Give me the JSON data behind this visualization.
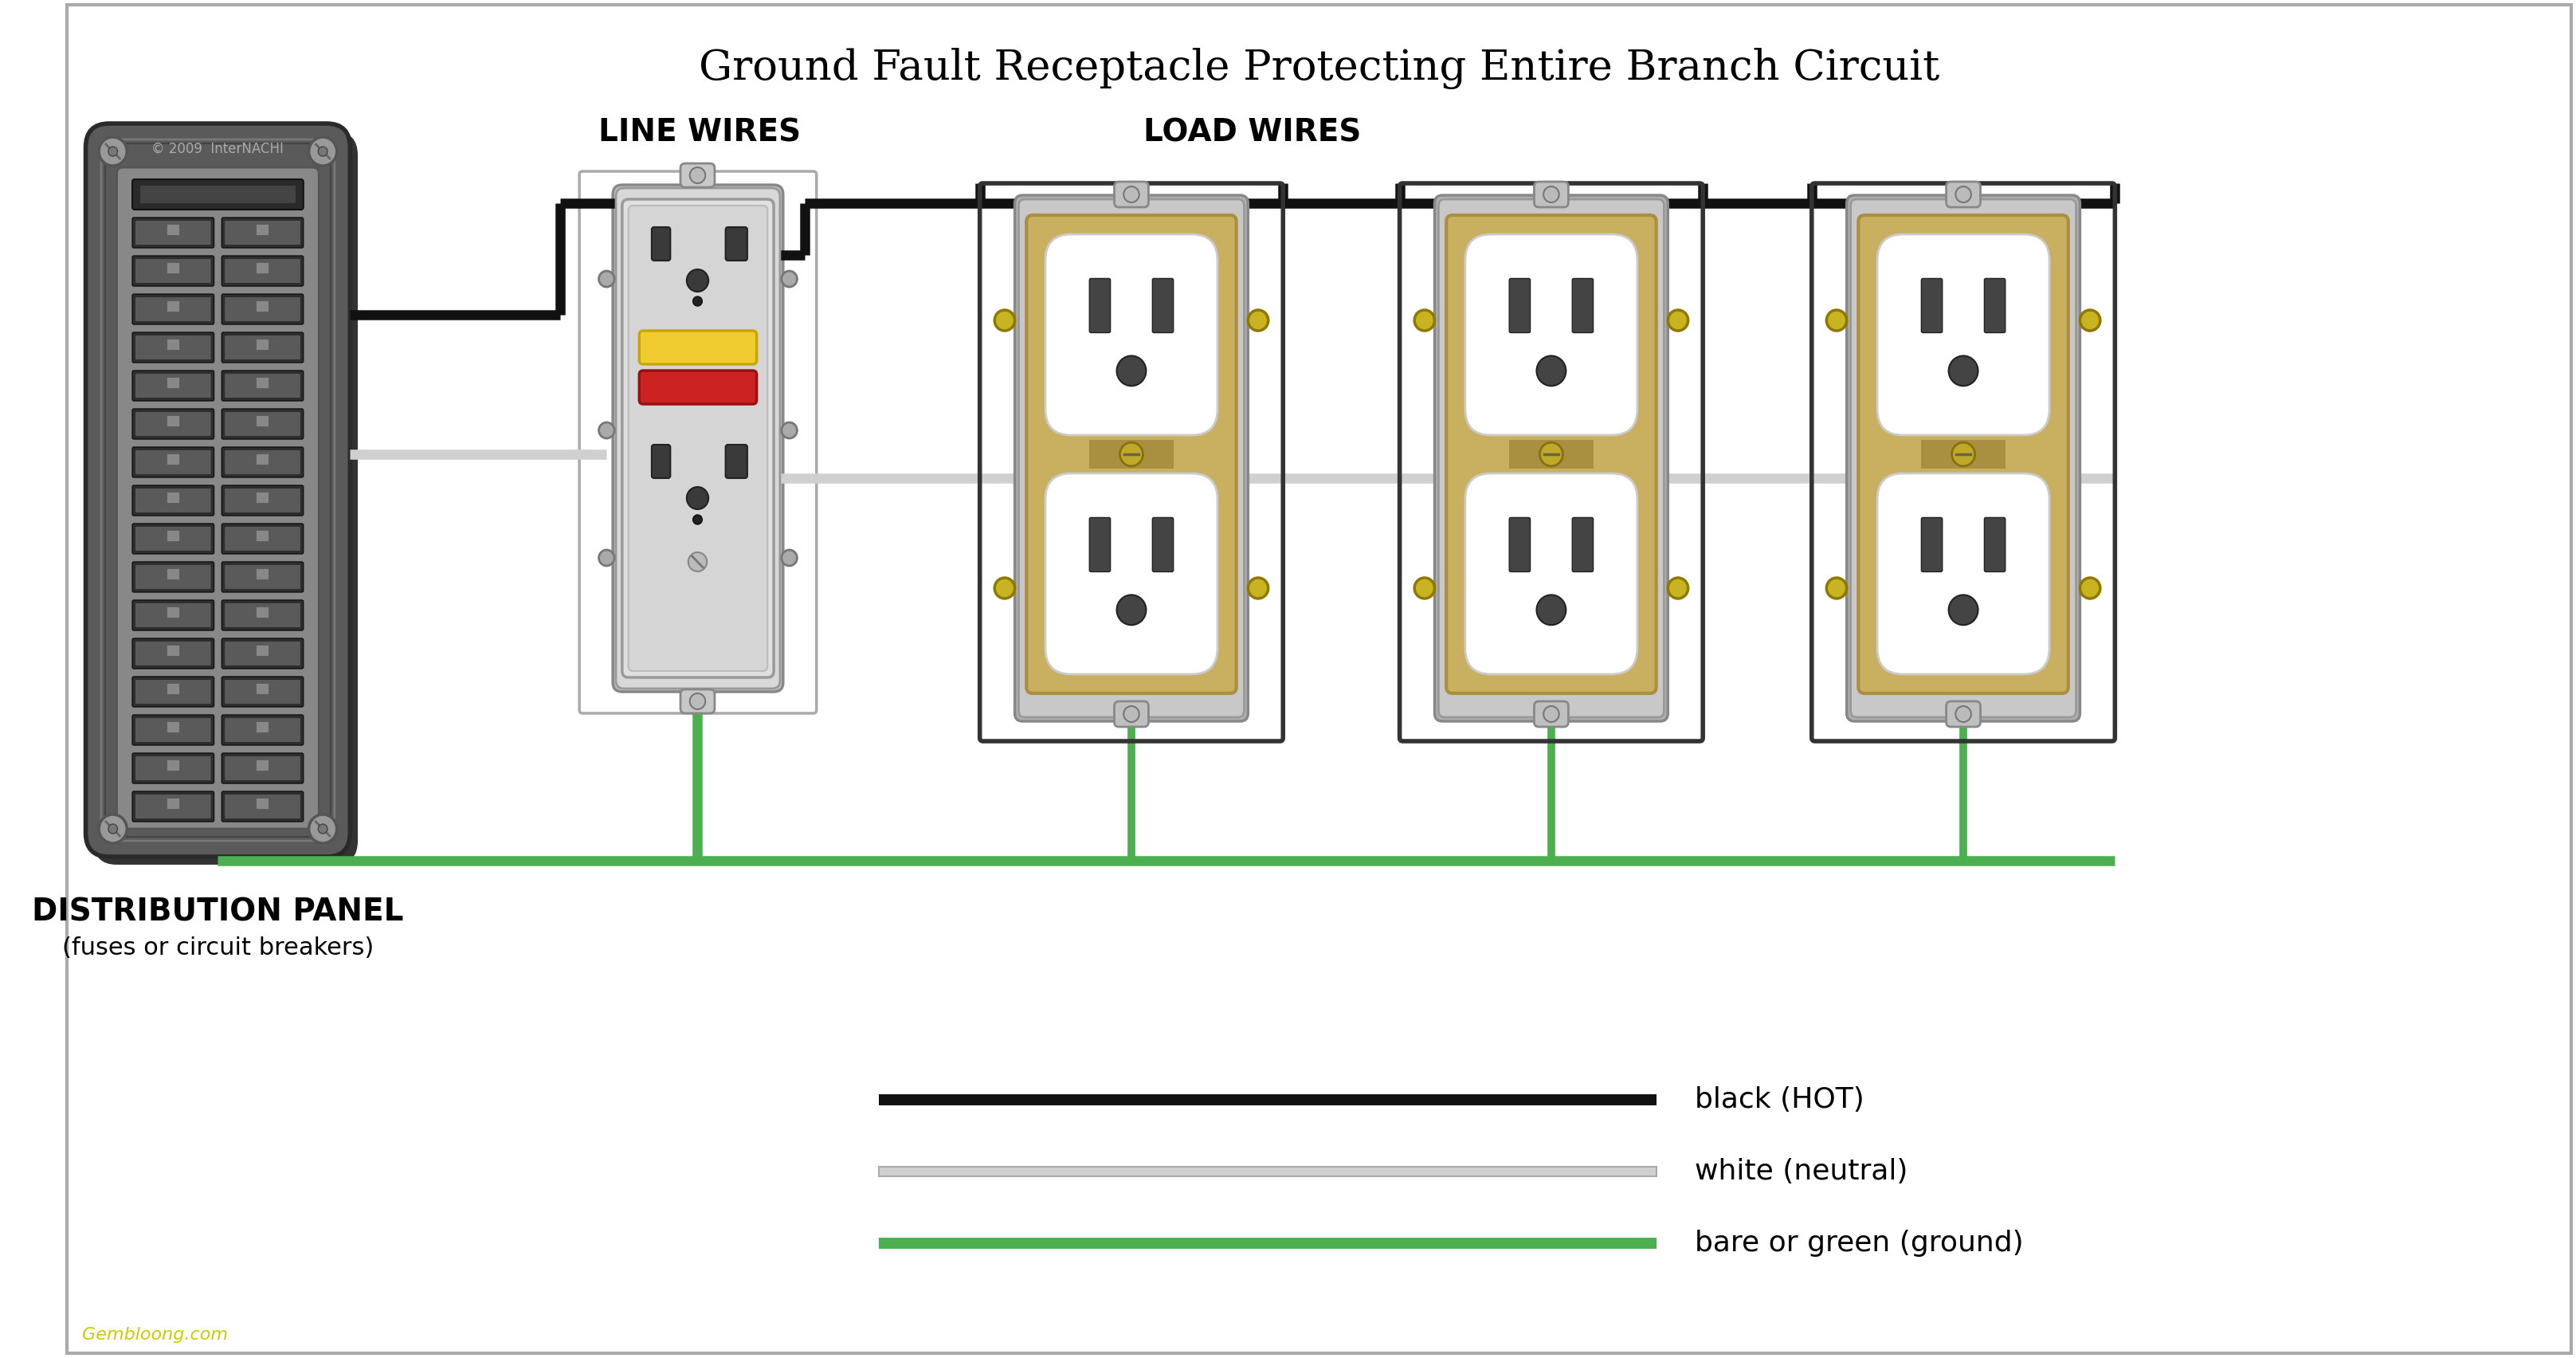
{
  "title": "Ground Fault Receptacle Protecting Entire Branch Circuit",
  "title_fontsize": 38,
  "background_color": "#ffffff",
  "line_wires_label": "LINE WIRES",
  "load_wires_label": "LOAD WIRES",
  "dist_panel_label1": "DISTRIBUTION PANEL",
  "dist_panel_label2": "(fuses or circuit breakers)",
  "legend_black": "black (HOT)",
  "legend_white": "white (neutral)",
  "legend_green": "bare or green (ground)",
  "watermark": "Gembloong.com",
  "panel_outer_color": "#5a5a5a",
  "panel_inner_color": "#888888",
  "panel_breaker_dark": "#3a3a3a",
  "panel_breaker_med": "#6a6a6a",
  "outlet_gold": "#c8b060",
  "outlet_gold_dark": "#a89040",
  "outlet_white": "#f0f0f0",
  "gfci_plate_color": "#e0e0e0",
  "gfci_plate_dark": "#c8c8c8",
  "screw_color": "#aaaaaa",
  "wire_black": "#111111",
  "wire_white": "#d0d0d0",
  "wire_green": "#4caf50",
  "border_color": "#aaaaaa",
  "box_outline": "#333333",
  "label_fontsize": 28,
  "legend_fontsize": 26
}
